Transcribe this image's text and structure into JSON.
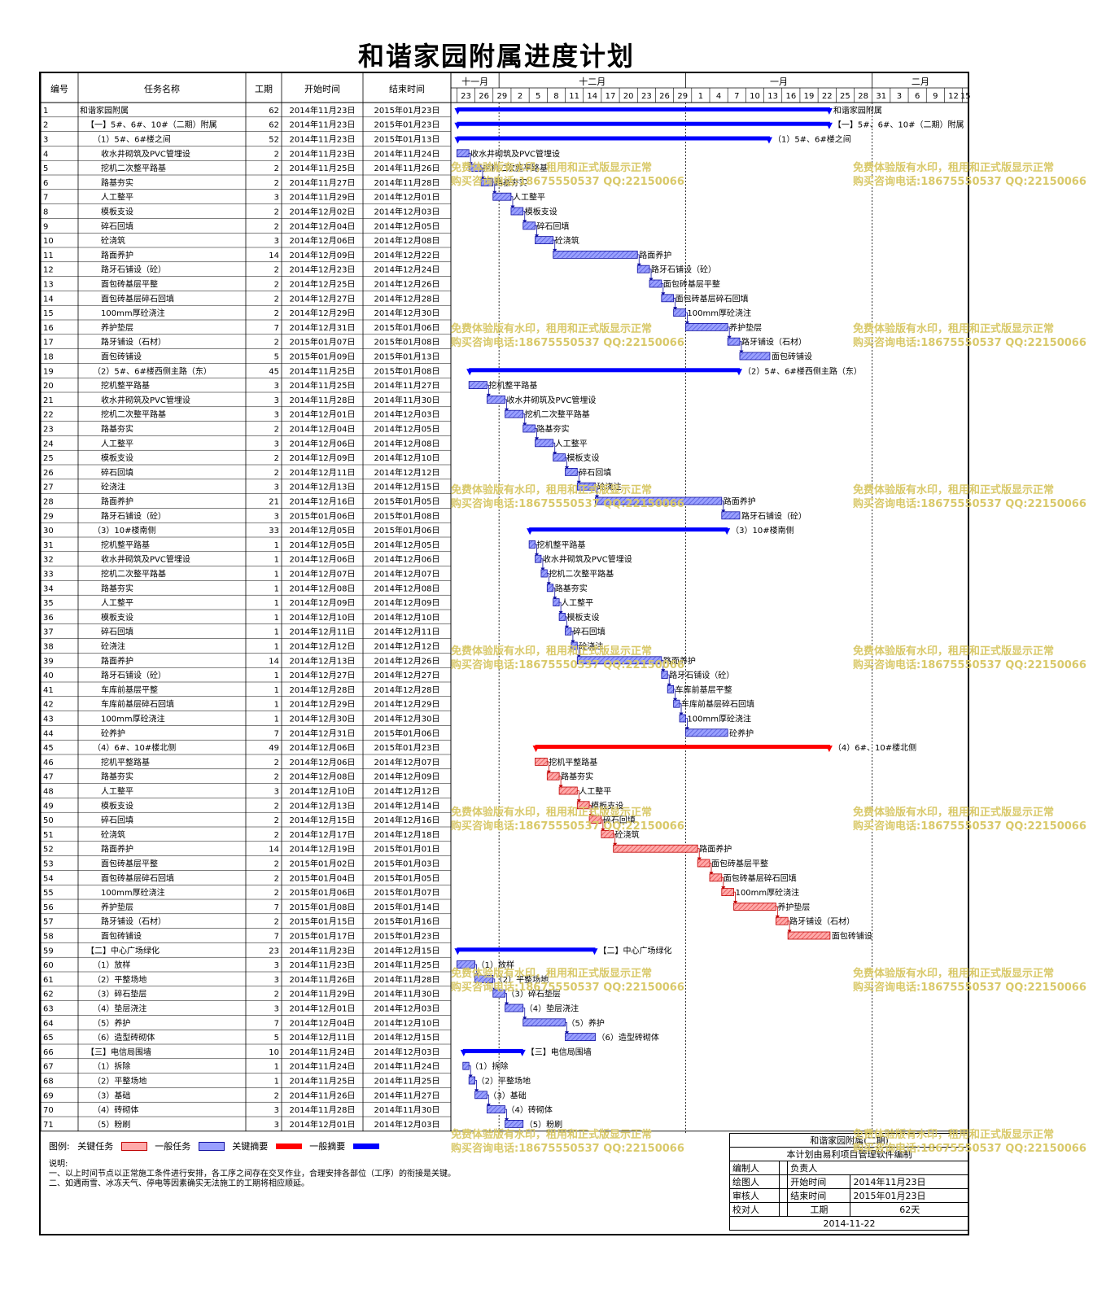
{
  "title": "和谐家园附属进度计划",
  "headers": {
    "no": "编号",
    "name": "任务名称",
    "dur": "工期",
    "start": "开始时间",
    "end": "结束时间"
  },
  "months": [
    {
      "label": "十一月",
      "from": "2014-11-22",
      "to": "2014-11-30"
    },
    {
      "label": "十二月",
      "from": "2014-11-30",
      "to": "2014-12-31"
    },
    {
      "label": "一月",
      "from": "2014-12-31",
      "to": "2015-01-31"
    },
    {
      "label": "二月",
      "from": "2015-01-31",
      "to": "2015-02-16"
    }
  ],
  "day_ticks": [
    "2014-11-23",
    "2014-11-26",
    "2014-11-29",
    "2014-12-02",
    "2014-12-05",
    "2014-12-08",
    "2014-12-11",
    "2014-12-14",
    "2014-12-17",
    "2014-12-20",
    "2014-12-23",
    "2014-12-26",
    "2014-12-29",
    "2015-01-01",
    "2015-01-04",
    "2015-01-07",
    "2015-01-10",
    "2015-01-13",
    "2015-01-16",
    "2015-01-19",
    "2015-01-22",
    "2015-01-25",
    "2015-01-28",
    "2015-01-31",
    "2015-02-03",
    "2015-02-06",
    "2015-02-09",
    "2015-02-12",
    "2015-02-15"
  ],
  "day_labels": [
    "23",
    "26",
    "29",
    "2",
    "5",
    "8",
    "11",
    "14",
    "17",
    "20",
    "23",
    "26",
    "29",
    "1",
    "4",
    "7",
    "10",
    "13",
    "16",
    "19",
    "22",
    "25",
    "28",
    "31",
    "3",
    "6",
    "9",
    "12",
    "15"
  ],
  "colors": {
    "critical_task": "#ef7d7d",
    "general_task": "#7a7fe6",
    "critical_summary": "#ff0000",
    "general_summary": "#0000ff",
    "task_edge_crit": "#c00000",
    "task_edge_gen": "#1010a0"
  },
  "chart_data": {
    "type": "gantt",
    "x_axis": "date",
    "x_range": [
      "2014-11-22",
      "2015-02-16"
    ],
    "tasks": [
      {
        "no": "1",
        "name": "和谐家园附属",
        "dur": 62,
        "start": "2014年11月23日",
        "end": "2015年01月23日",
        "s": "2014-11-23",
        "e": "2015-01-23",
        "kind": "gsum",
        "level": 0
      },
      {
        "no": "2",
        "name": "【一】5#、6#、10#（二期）附属",
        "dur": 62,
        "start": "2014年11月23日",
        "end": "2015年01月23日",
        "s": "2014-11-23",
        "e": "2015-01-23",
        "kind": "gsum",
        "level": 1
      },
      {
        "no": "3",
        "name": "（1）5#、6#楼之间",
        "dur": 52,
        "start": "2014年11月23日",
        "end": "2015年01月13日",
        "s": "2014-11-23",
        "e": "2015-01-13",
        "kind": "gsum",
        "level": 2
      },
      {
        "no": "4",
        "name": "收水井砌筑及PVC管埋设",
        "dur": 2,
        "start": "2014年11月23日",
        "end": "2014年11月24日",
        "s": "2014-11-23",
        "e": "2014-11-24",
        "kind": "gen",
        "level": 3
      },
      {
        "no": "5",
        "name": "挖机二次整平路基",
        "dur": 2,
        "start": "2014年11月25日",
        "end": "2014年11月26日",
        "s": "2014-11-25",
        "e": "2014-11-26",
        "kind": "gen",
        "level": 3
      },
      {
        "no": "6",
        "name": "路基夯实",
        "dur": 2,
        "start": "2014年11月27日",
        "end": "2014年11月28日",
        "s": "2014-11-27",
        "e": "2014-11-28",
        "kind": "gen",
        "level": 3
      },
      {
        "no": "7",
        "name": "人工整平",
        "dur": 3,
        "start": "2014年11月29日",
        "end": "2014年12月01日",
        "s": "2014-11-29",
        "e": "2014-12-01",
        "kind": "gen",
        "level": 3
      },
      {
        "no": "8",
        "name": "模板支设",
        "dur": 2,
        "start": "2014年12月02日",
        "end": "2014年12月03日",
        "s": "2014-12-02",
        "e": "2014-12-03",
        "kind": "gen",
        "level": 3
      },
      {
        "no": "9",
        "name": "碎石回填",
        "dur": 2,
        "start": "2014年12月04日",
        "end": "2014年12月05日",
        "s": "2014-12-04",
        "e": "2014-12-05",
        "kind": "gen",
        "level": 3
      },
      {
        "no": "10",
        "name": "砼浇筑",
        "dur": 3,
        "start": "2014年12月06日",
        "end": "2014年12月08日",
        "s": "2014-12-06",
        "e": "2014-12-08",
        "kind": "gen",
        "level": 3
      },
      {
        "no": "11",
        "name": "路面养护",
        "dur": 14,
        "start": "2014年12月09日",
        "end": "2014年12月22日",
        "s": "2014-12-09",
        "e": "2014-12-22",
        "kind": "gen",
        "level": 3
      },
      {
        "no": "12",
        "name": "路牙石铺设（砼）",
        "dur": 2,
        "start": "2014年12月23日",
        "end": "2014年12月24日",
        "s": "2014-12-23",
        "e": "2014-12-24",
        "kind": "gen",
        "level": 3
      },
      {
        "no": "13",
        "name": "面包砖基层平整",
        "dur": 2,
        "start": "2014年12月25日",
        "end": "2014年12月26日",
        "s": "2014-12-25",
        "e": "2014-12-26",
        "kind": "gen",
        "level": 3
      },
      {
        "no": "14",
        "name": "面包砖基层碎石回填",
        "dur": 2,
        "start": "2014年12月27日",
        "end": "2014年12月28日",
        "s": "2014-12-27",
        "e": "2014-12-28",
        "kind": "gen",
        "level": 3
      },
      {
        "no": "15",
        "name": "100mm厚砼浇注",
        "dur": 2,
        "start": "2014年12月29日",
        "end": "2014年12月30日",
        "s": "2014-12-29",
        "e": "2014-12-30",
        "kind": "gen",
        "level": 3
      },
      {
        "no": "16",
        "name": "养护垫层",
        "dur": 7,
        "start": "2014年12月31日",
        "end": "2015年01月06日",
        "s": "2014-12-31",
        "e": "2015-01-06",
        "kind": "gen",
        "level": 3
      },
      {
        "no": "17",
        "name": "路牙铺设（石材）",
        "dur": 2,
        "start": "2015年01月07日",
        "end": "2015年01月08日",
        "s": "2015-01-07",
        "e": "2015-01-08",
        "kind": "gen",
        "level": 3
      },
      {
        "no": "18",
        "name": "面包砖铺设",
        "dur": 5,
        "start": "2015年01月09日",
        "end": "2015年01月13日",
        "s": "2015-01-09",
        "e": "2015-01-13",
        "kind": "gen",
        "level": 3
      },
      {
        "no": "19",
        "name": "（2）5#、6#楼西侧主路（东）",
        "dur": 45,
        "start": "2014年11月25日",
        "end": "2015年01月08日",
        "s": "2014-11-25",
        "e": "2015-01-08",
        "kind": "gsum",
        "level": 2
      },
      {
        "no": "20",
        "name": "挖机整平路基",
        "dur": 3,
        "start": "2014年11月25日",
        "end": "2014年11月27日",
        "s": "2014-11-25",
        "e": "2014-11-27",
        "kind": "gen",
        "level": 3
      },
      {
        "no": "21",
        "name": "收水井砌筑及PVC管埋设",
        "dur": 3,
        "start": "2014年11月28日",
        "end": "2014年11月30日",
        "s": "2014-11-28",
        "e": "2014-11-30",
        "kind": "gen",
        "level": 3
      },
      {
        "no": "22",
        "name": "挖机二次整平路基",
        "dur": 3,
        "start": "2014年12月01日",
        "end": "2014年12月03日",
        "s": "2014-12-01",
        "e": "2014-12-03",
        "kind": "gen",
        "level": 3
      },
      {
        "no": "23",
        "name": "路基夯实",
        "dur": 2,
        "start": "2014年12月04日",
        "end": "2014年12月05日",
        "s": "2014-12-04",
        "e": "2014-12-05",
        "kind": "gen",
        "level": 3
      },
      {
        "no": "24",
        "name": "人工整平",
        "dur": 3,
        "start": "2014年12月06日",
        "end": "2014年12月08日",
        "s": "2014-12-06",
        "e": "2014-12-08",
        "kind": "gen",
        "level": 3
      },
      {
        "no": "25",
        "name": "模板支设",
        "dur": 2,
        "start": "2014年12月09日",
        "end": "2014年12月10日",
        "s": "2014-12-09",
        "e": "2014-12-10",
        "kind": "gen",
        "level": 3
      },
      {
        "no": "26",
        "name": "碎石回填",
        "dur": 2,
        "start": "2014年12月11日",
        "end": "2014年12月12日",
        "s": "2014-12-11",
        "e": "2014-12-12",
        "kind": "gen",
        "level": 3
      },
      {
        "no": "27",
        "name": "砼浇注",
        "dur": 3,
        "start": "2014年12月13日",
        "end": "2014年12月15日",
        "s": "2014-12-13",
        "e": "2014-12-15",
        "kind": "gen",
        "level": 3
      },
      {
        "no": "28",
        "name": "路面养护",
        "dur": 21,
        "start": "2014年12月16日",
        "end": "2015年01月05日",
        "s": "2014-12-16",
        "e": "2015-01-05",
        "kind": "gen",
        "level": 3
      },
      {
        "no": "29",
        "name": "路牙石铺设（砼）",
        "dur": 3,
        "start": "2015年01月06日",
        "end": "2015年01月08日",
        "s": "2015-01-06",
        "e": "2015-01-08",
        "kind": "gen",
        "level": 3
      },
      {
        "no": "30",
        "name": "（3）10#楼南侧",
        "dur": 33,
        "start": "2014年12月05日",
        "end": "2015年01月06日",
        "s": "2014-12-05",
        "e": "2015-01-06",
        "kind": "gsum",
        "level": 2
      },
      {
        "no": "31",
        "name": "挖机整平路基",
        "dur": 1,
        "start": "2014年12月05日",
        "end": "2014年12月05日",
        "s": "2014-12-05",
        "e": "2014-12-05",
        "kind": "gen",
        "level": 3
      },
      {
        "no": "32",
        "name": "收水井砌筑及PVC管埋设",
        "dur": 1,
        "start": "2014年12月06日",
        "end": "2014年12月06日",
        "s": "2014-12-06",
        "e": "2014-12-06",
        "kind": "gen",
        "level": 3
      },
      {
        "no": "33",
        "name": "挖机二次整平路基",
        "dur": 1,
        "start": "2014年12月07日",
        "end": "2014年12月07日",
        "s": "2014-12-07",
        "e": "2014-12-07",
        "kind": "gen",
        "level": 3
      },
      {
        "no": "34",
        "name": "路基夯实",
        "dur": 1,
        "start": "2014年12月08日",
        "end": "2014年12月08日",
        "s": "2014-12-08",
        "e": "2014-12-08",
        "kind": "gen",
        "level": 3
      },
      {
        "no": "35",
        "name": "人工整平",
        "dur": 1,
        "start": "2014年12月09日",
        "end": "2014年12月09日",
        "s": "2014-12-09",
        "e": "2014-12-09",
        "kind": "gen",
        "level": 3
      },
      {
        "no": "36",
        "name": "模板支设",
        "dur": 1,
        "start": "2014年12月10日",
        "end": "2014年12月10日",
        "s": "2014-12-10",
        "e": "2014-12-10",
        "kind": "gen",
        "level": 3
      },
      {
        "no": "37",
        "name": "碎石回填",
        "dur": 1,
        "start": "2014年12月11日",
        "end": "2014年12月11日",
        "s": "2014-12-11",
        "e": "2014-12-11",
        "kind": "gen",
        "level": 3
      },
      {
        "no": "38",
        "name": "砼浇注",
        "dur": 1,
        "start": "2014年12月12日",
        "end": "2014年12月12日",
        "s": "2014-12-12",
        "e": "2014-12-12",
        "kind": "gen",
        "level": 3
      },
      {
        "no": "39",
        "name": "路面养护",
        "dur": 14,
        "start": "2014年12月13日",
        "end": "2014年12月26日",
        "s": "2014-12-13",
        "e": "2014-12-26",
        "kind": "gen",
        "level": 3
      },
      {
        "no": "40",
        "name": "路牙石铺设（砼）",
        "dur": 1,
        "start": "2014年12月27日",
        "end": "2014年12月27日",
        "s": "2014-12-27",
        "e": "2014-12-27",
        "kind": "gen",
        "level": 3
      },
      {
        "no": "41",
        "name": "车库前基层平整",
        "dur": 1,
        "start": "2014年12月28日",
        "end": "2014年12月28日",
        "s": "2014-12-28",
        "e": "2014-12-28",
        "kind": "gen",
        "level": 3
      },
      {
        "no": "42",
        "name": "车库前基层碎石回填",
        "dur": 1,
        "start": "2014年12月29日",
        "end": "2014年12月29日",
        "s": "2014-12-29",
        "e": "2014-12-29",
        "kind": "gen",
        "level": 3
      },
      {
        "no": "43",
        "name": "100mm厚砼浇注",
        "dur": 1,
        "start": "2014年12月30日",
        "end": "2014年12月30日",
        "s": "2014-12-30",
        "e": "2014-12-30",
        "kind": "gen",
        "level": 3
      },
      {
        "no": "44",
        "name": "砼养护",
        "dur": 7,
        "start": "2014年12月31日",
        "end": "2015年01月06日",
        "s": "2014-12-31",
        "e": "2015-01-06",
        "kind": "gen",
        "level": 3
      },
      {
        "no": "45",
        "name": "（4）6#、10#楼北侧",
        "dur": 49,
        "start": "2014年12月06日",
        "end": "2015年01月23日",
        "s": "2014-12-06",
        "e": "2015-01-23",
        "kind": "csum",
        "level": 2
      },
      {
        "no": "46",
        "name": "挖机平整路基",
        "dur": 2,
        "start": "2014年12月06日",
        "end": "2014年12月07日",
        "s": "2014-12-06",
        "e": "2014-12-07",
        "kind": "crit",
        "level": 3
      },
      {
        "no": "47",
        "name": "路基夯实",
        "dur": 2,
        "start": "2014年12月08日",
        "end": "2014年12月09日",
        "s": "2014-12-08",
        "e": "2014-12-09",
        "kind": "crit",
        "level": 3
      },
      {
        "no": "48",
        "name": "人工整平",
        "dur": 3,
        "start": "2014年12月10日",
        "end": "2014年12月12日",
        "s": "2014-12-10",
        "e": "2014-12-12",
        "kind": "crit",
        "level": 3
      },
      {
        "no": "49",
        "name": "模板支设",
        "dur": 2,
        "start": "2014年12月13日",
        "end": "2014年12月14日",
        "s": "2014-12-13",
        "e": "2014-12-14",
        "kind": "crit",
        "level": 3
      },
      {
        "no": "50",
        "name": "碎石回填",
        "dur": 2,
        "start": "2014年12月15日",
        "end": "2014年12月16日",
        "s": "2014-12-15",
        "e": "2014-12-16",
        "kind": "crit",
        "level": 3
      },
      {
        "no": "51",
        "name": "砼浇筑",
        "dur": 2,
        "start": "2014年12月17日",
        "end": "2014年12月18日",
        "s": "2014-12-17",
        "e": "2014-12-18",
        "kind": "crit",
        "level": 3
      },
      {
        "no": "52",
        "name": "路面养护",
        "dur": 14,
        "start": "2014年12月19日",
        "end": "2015年01月01日",
        "s": "2014-12-19",
        "e": "2015-01-01",
        "kind": "crit",
        "level": 3
      },
      {
        "no": "53",
        "name": "面包砖基层平整",
        "dur": 2,
        "start": "2015年01月02日",
        "end": "2015年01月03日",
        "s": "2015-01-02",
        "e": "2015-01-03",
        "kind": "crit",
        "level": 3
      },
      {
        "no": "54",
        "name": "面包砖基层碎石回填",
        "dur": 2,
        "start": "2015年01月04日",
        "end": "2015年01月05日",
        "s": "2015-01-04",
        "e": "2015-01-05",
        "kind": "crit",
        "level": 3
      },
      {
        "no": "55",
        "name": "100mm厚砼浇注",
        "dur": 2,
        "start": "2015年01月06日",
        "end": "2015年01月07日",
        "s": "2015-01-06",
        "e": "2015-01-07",
        "kind": "crit",
        "level": 3
      },
      {
        "no": "56",
        "name": "养护垫层",
        "dur": 7,
        "start": "2015年01月08日",
        "end": "2015年01月14日",
        "s": "2015-01-08",
        "e": "2015-01-14",
        "kind": "crit",
        "level": 3
      },
      {
        "no": "57",
        "name": "路牙铺设（石材）",
        "dur": 2,
        "start": "2015年01月15日",
        "end": "2015年01月16日",
        "s": "2015-01-15",
        "e": "2015-01-16",
        "kind": "crit",
        "level": 3
      },
      {
        "no": "58",
        "name": "面包砖铺设",
        "dur": 7,
        "start": "2015年01月17日",
        "end": "2015年01月23日",
        "s": "2015-01-17",
        "e": "2015-01-23",
        "kind": "crit",
        "level": 3
      },
      {
        "no": "59",
        "name": "【二】中心广场绿化",
        "dur": 23,
        "start": "2014年11月23日",
        "end": "2014年12月15日",
        "s": "2014-11-23",
        "e": "2014-12-15",
        "kind": "gsum",
        "level": 1
      },
      {
        "no": "60",
        "name": "（1）放样",
        "dur": 3,
        "start": "2014年11月23日",
        "end": "2014年11月25日",
        "s": "2014-11-23",
        "e": "2014-11-25",
        "kind": "gen",
        "level": 2
      },
      {
        "no": "61",
        "name": "（2）平整场地",
        "dur": 3,
        "start": "2014年11月26日",
        "end": "2014年11月28日",
        "s": "2014-11-26",
        "e": "2014-11-28",
        "kind": "gen",
        "level": 2
      },
      {
        "no": "62",
        "name": "（3）碎石垫层",
        "dur": 2,
        "start": "2014年11月29日",
        "end": "2014年11月30日",
        "s": "2014-11-29",
        "e": "2014-11-30",
        "kind": "gen",
        "level": 2
      },
      {
        "no": "63",
        "name": "（4）垫层浇注",
        "dur": 3,
        "start": "2014年12月01日",
        "end": "2014年12月03日",
        "s": "2014-12-01",
        "e": "2014-12-03",
        "kind": "gen",
        "level": 2
      },
      {
        "no": "64",
        "name": "（5）养护",
        "dur": 7,
        "start": "2014年12月04日",
        "end": "2014年12月10日",
        "s": "2014-12-04",
        "e": "2014-12-10",
        "kind": "gen",
        "level": 2
      },
      {
        "no": "65",
        "name": "（6）造型砖砌体",
        "dur": 5,
        "start": "2014年12月11日",
        "end": "2014年12月15日",
        "s": "2014-12-11",
        "e": "2014-12-15",
        "kind": "gen",
        "level": 2
      },
      {
        "no": "66",
        "name": "【三】电信局围墙",
        "dur": 10,
        "start": "2014年11月24日",
        "end": "2014年12月03日",
        "s": "2014-11-24",
        "e": "2014-12-03",
        "kind": "gsum",
        "level": 1
      },
      {
        "no": "67",
        "name": "（1）拆除",
        "dur": 1,
        "start": "2014年11月24日",
        "end": "2014年11月24日",
        "s": "2014-11-24",
        "e": "2014-11-24",
        "kind": "gen",
        "level": 2
      },
      {
        "no": "68",
        "name": "（2）平整场地",
        "dur": 1,
        "start": "2014年11月25日",
        "end": "2014年11月25日",
        "s": "2014-11-25",
        "e": "2014-11-25",
        "kind": "gen",
        "level": 2
      },
      {
        "no": "69",
        "name": "（3）基础",
        "dur": 2,
        "start": "2014年11月26日",
        "end": "2014年11月27日",
        "s": "2014-11-26",
        "e": "2014-11-27",
        "kind": "gen",
        "level": 2
      },
      {
        "no": "70",
        "name": "（4）砖砌体",
        "dur": 3,
        "start": "2014年11月28日",
        "end": "2014年11月30日",
        "s": "2014-11-28",
        "e": "2014-11-30",
        "kind": "gen",
        "level": 2
      },
      {
        "no": "71",
        "name": "（5）粉刷",
        "dur": 3,
        "start": "2014年12月01日",
        "end": "2014年12月03日",
        "s": "2014-12-01",
        "e": "2014-12-03",
        "kind": "gen",
        "level": 2
      }
    ]
  },
  "legend": {
    "label": "图例:",
    "critical_task": "关键任务",
    "general_task": "一般任务",
    "critical_summary": "关键摘要",
    "general_summary": "一般摘要"
  },
  "notes": "说明:\n一、以上时间节点以正常施工条件进行安排，各工序之间存在交叉作业，合理安排各部位（工序）的衔接是关键。\n二、如遇雨雪、冰冻天气、停电等因素确实无法施工的工期将相应顺延。",
  "signoff": {
    "project": "和谐家园附属(二期)",
    "software": "本计划由易利项目管理软件编制",
    "editor": "编制人",
    "owner": "负责人",
    "drawer": "绘图人",
    "start_label": "开始时间",
    "start_val": "2014年11月23日",
    "reviewer": "审核人",
    "end_label": "结束时间",
    "end_val": "2015年01月23日",
    "checker": "校对人",
    "dur_label": "工期",
    "dur_val": "62天",
    "date": "2014-11-22"
  },
  "watermark": "免费体验版有水印，租用和正式版显示正常\n购买咨询电话:18675550537 QQ:22150066"
}
